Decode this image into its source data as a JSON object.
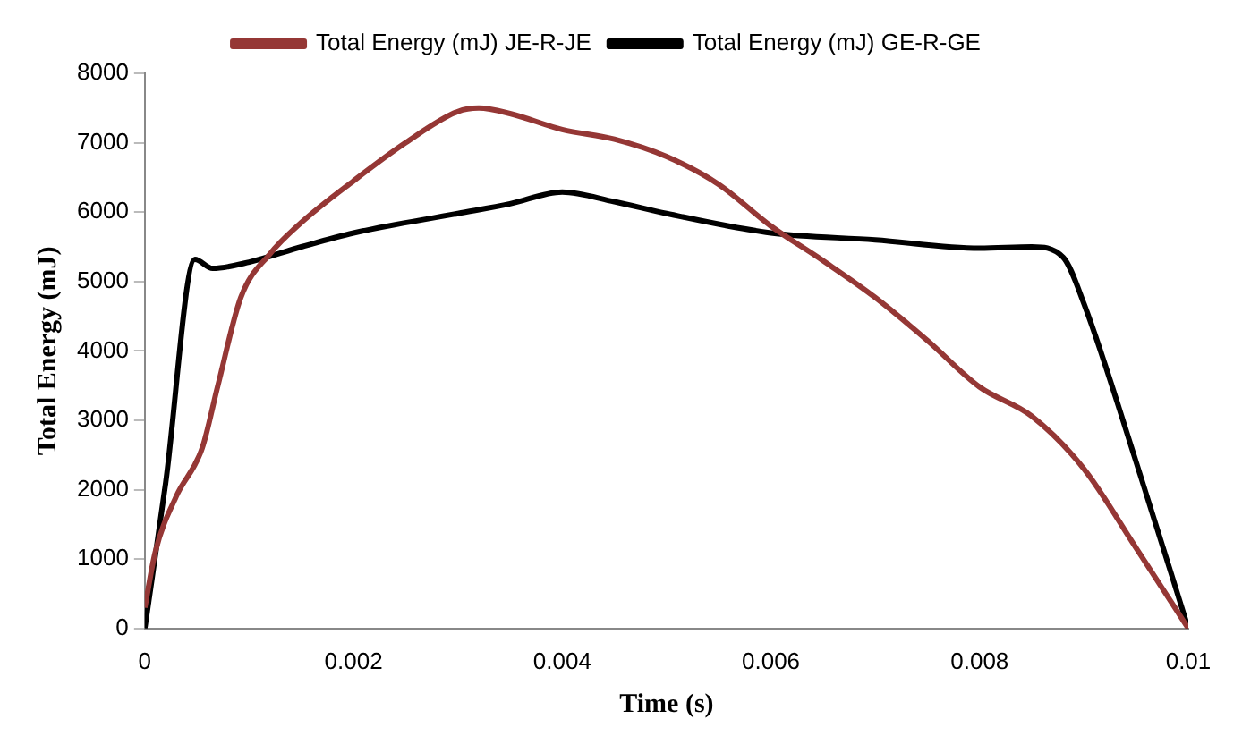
{
  "chart_data": {
    "type": "line",
    "xlabel": "Time (s)",
    "ylabel": "Total Energy (mJ)",
    "xlim": [
      0,
      0.01
    ],
    "xticks": [
      0,
      0.002,
      0.004,
      0.006,
      0.008,
      0.01
    ],
    "ylim": [
      0,
      8000
    ],
    "yticks": [
      0,
      1000,
      2000,
      3000,
      4000,
      5000,
      6000,
      7000,
      8000
    ],
    "grid": false,
    "legend": "top",
    "marker": "none",
    "line_style": "solid",
    "series": [
      {
        "name": "Total Energy (mJ) JE-R-JE",
        "color": "#953735",
        "x": [
          0,
          0.0001,
          0.0003,
          0.00055,
          0.0007,
          0.00092,
          0.0012,
          0.0015,
          0.002,
          0.0025,
          0.003,
          0.0032,
          0.0035,
          0.004,
          0.0045,
          0.005,
          0.0055,
          0.006,
          0.0065,
          0.007,
          0.0075,
          0.008,
          0.0085,
          0.009,
          0.0095,
          0.01
        ],
        "values": [
          300,
          1100,
          1900,
          2600,
          3500,
          4770,
          5400,
          5850,
          6450,
          7000,
          7450,
          7500,
          7420,
          7190,
          7050,
          6800,
          6400,
          5800,
          5300,
          4770,
          4150,
          3480,
          3060,
          2300,
          1160,
          0
        ]
      },
      {
        "name": "Total Energy (mJ) GE-R-GE",
        "color": "#000000",
        "x": [
          0,
          0.0002,
          0.00048,
          0.00065,
          0.001,
          0.0015,
          0.002,
          0.003,
          0.0035,
          0.004,
          0.0045,
          0.005,
          0.006,
          0.007,
          0.008,
          0.0085,
          0.0088,
          0.009,
          0.0095,
          0.01
        ],
        "values": [
          0,
          2100,
          5320,
          5190,
          5280,
          5500,
          5700,
          5980,
          6120,
          6290,
          6150,
          5980,
          5700,
          5600,
          5480,
          5500,
          5350,
          4680,
          2400,
          0
        ]
      }
    ]
  }
}
